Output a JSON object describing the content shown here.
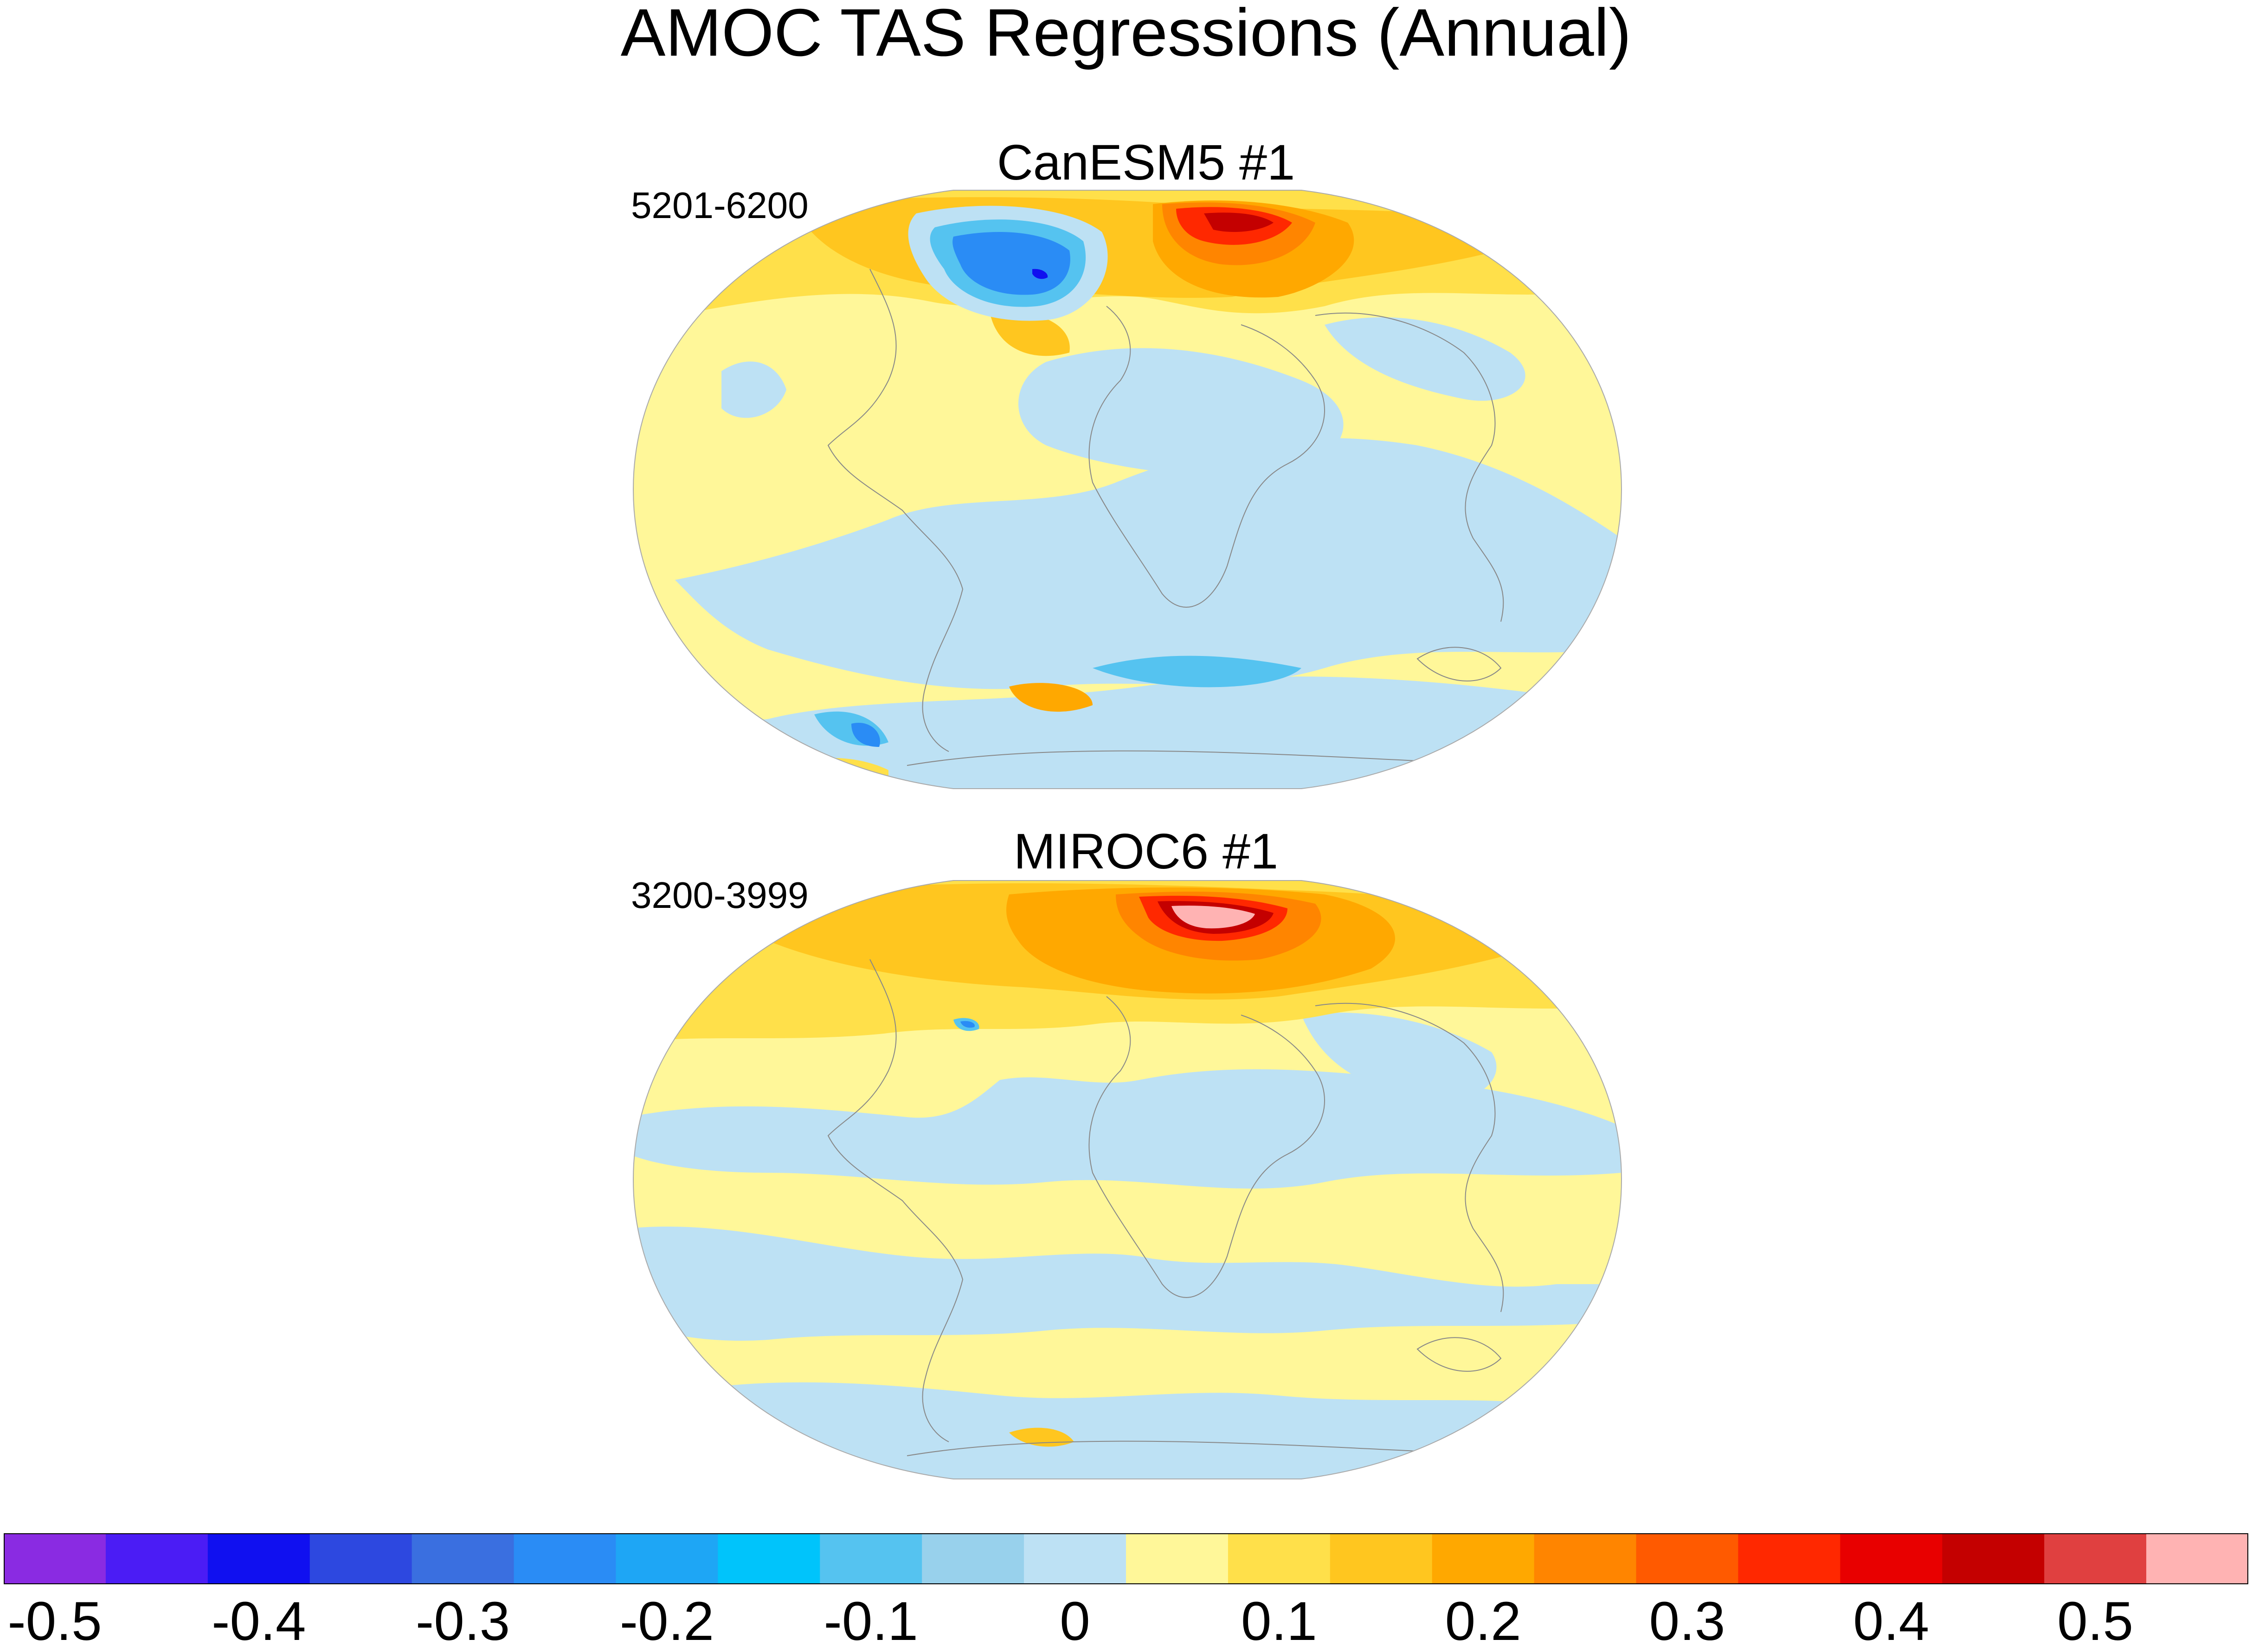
{
  "title": "AMOC TAS Regressions (Annual)",
  "panels": [
    {
      "model": "CanESM5 #1",
      "period": "5201-6200"
    },
    {
      "model": "MIROC6 #1",
      "period": "3200-3999"
    }
  ],
  "colorbar": {
    "labels": [
      "-0.5",
      "-0.4",
      "-0.3",
      "-0.2",
      "-0.1",
      "0",
      "0.1",
      "0.2",
      "0.3",
      "0.4",
      "0.5"
    ],
    "colors": [
      "#8a2be2",
      "#4b1cf5",
      "#1010f0",
      "#2d48e0",
      "#3a6fe0",
      "#2a8cf5",
      "#1ea6f5",
      "#00c4fb",
      "#55c3f0",
      "#98d1ec",
      "#bde1f4",
      "#fff799",
      "#ffe04a",
      "#ffc61f",
      "#ffa800",
      "#ff8500",
      "#ff5a00",
      "#ff2800",
      "#e80000",
      "#c40000",
      "#e04040",
      "#ffb3b3"
    ]
  },
  "map_palette": {
    "background": "#fff799",
    "neg_light": "#bde1f4",
    "neg_mid": "#98d1ec",
    "neg_strong": "#55c3f0",
    "neg_deep": "#2a8cf5",
    "neg_darkest": "#1010f0",
    "pos_1": "#ffe04a",
    "pos_2": "#ffc61f",
    "pos_3": "#ffa800",
    "pos_4": "#ff8500",
    "pos_5": "#ff2800",
    "pos_6": "#c40000",
    "pos_7": "#ffb3b3"
  }
}
